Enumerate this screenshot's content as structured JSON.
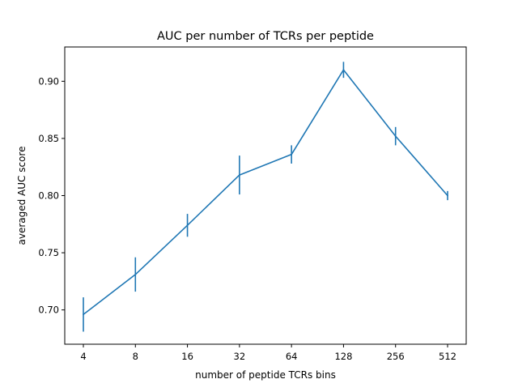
{
  "chart_data": {
    "type": "line",
    "title": "AUC per number of TCRs per peptide",
    "xlabel": "number of peptide TCRs bins",
    "ylabel": "averaged AUC score",
    "categories": [
      "4",
      "8",
      "16",
      "32",
      "64",
      "128",
      "256",
      "512"
    ],
    "series": [
      {
        "values": [
          0.696,
          0.731,
          0.774,
          0.818,
          0.836,
          0.91,
          0.852,
          0.8
        ],
        "errors": [
          0.015,
          0.015,
          0.01,
          0.017,
          0.008,
          0.007,
          0.008,
          0.004
        ],
        "color": "#1f77b4"
      }
    ],
    "ylim": [
      0.67,
      0.93
    ],
    "yticks": [
      0.7,
      0.75,
      0.8,
      0.85,
      0.9
    ],
    "ytick_labels": [
      "0.70",
      "0.75",
      "0.80",
      "0.85",
      "0.90"
    ],
    "grid": false,
    "legend": "none"
  }
}
